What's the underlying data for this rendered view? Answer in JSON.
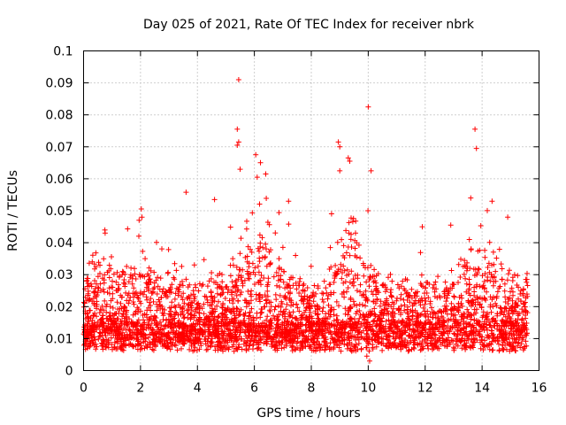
{
  "chart_data": {
    "type": "scatter",
    "title": "Day 025 of 2021, Rate Of TEC Index for receiver nbrk",
    "xlabel": "GPS time / hours",
    "ylabel": "ROTI / TECUs",
    "xlim": [
      0,
      16
    ],
    "ylim": [
      0,
      0.1
    ],
    "x_ticks": [
      "0",
      "2",
      "4",
      "6",
      "8",
      "10",
      "12",
      "14",
      "16"
    ],
    "y_ticks": [
      "0",
      "0.01",
      "0.02",
      "0.03",
      "0.04",
      "0.05",
      "0.06",
      "0.07",
      "0.08",
      "0.09",
      "0.1"
    ],
    "grid": true,
    "marker": "+",
    "series": [
      {
        "name": "ROTI",
        "color": "#ff0000",
        "x_range_hours": [
          0,
          15.6
        ],
        "typical_range": [
          0.005,
          0.02
        ],
        "notable_points": [
          {
            "x": 5.45,
            "y": 0.091
          },
          {
            "x": 5.4,
            "y": 0.0755
          },
          {
            "x": 5.45,
            "y": 0.0715
          },
          {
            "x": 5.4,
            "y": 0.0705
          },
          {
            "x": 5.5,
            "y": 0.063
          },
          {
            "x": 10.0,
            "y": 0.0825
          },
          {
            "x": 13.75,
            "y": 0.0755
          },
          {
            "x": 13.8,
            "y": 0.0695
          },
          {
            "x": 8.95,
            "y": 0.0715
          },
          {
            "x": 9.0,
            "y": 0.07
          },
          {
            "x": 9.3,
            "y": 0.0665
          },
          {
            "x": 9.35,
            "y": 0.0655
          },
          {
            "x": 6.05,
            "y": 0.0675
          },
          {
            "x": 6.4,
            "y": 0.0615
          },
          {
            "x": 6.1,
            "y": 0.0605
          },
          {
            "x": 10.1,
            "y": 0.0625
          },
          {
            "x": 9.0,
            "y": 0.0625
          },
          {
            "x": 3.6,
            "y": 0.0558
          },
          {
            "x": 13.6,
            "y": 0.054
          },
          {
            "x": 4.6,
            "y": 0.0535
          },
          {
            "x": 14.35,
            "y": 0.053
          },
          {
            "x": 1.95,
            "y": 0.047
          },
          {
            "x": 2.05,
            "y": 0.048
          },
          {
            "x": 12.9,
            "y": 0.0455
          },
          {
            "x": 0.75,
            "y": 0.044
          },
          {
            "x": 11.9,
            "y": 0.045
          },
          {
            "x": 14.9,
            "y": 0.048
          },
          {
            "x": 7.2,
            "y": 0.053
          },
          {
            "x": 10.05,
            "y": 0.003
          },
          {
            "x": 9.95,
            "y": 0.0045
          }
        ]
      }
    ]
  }
}
